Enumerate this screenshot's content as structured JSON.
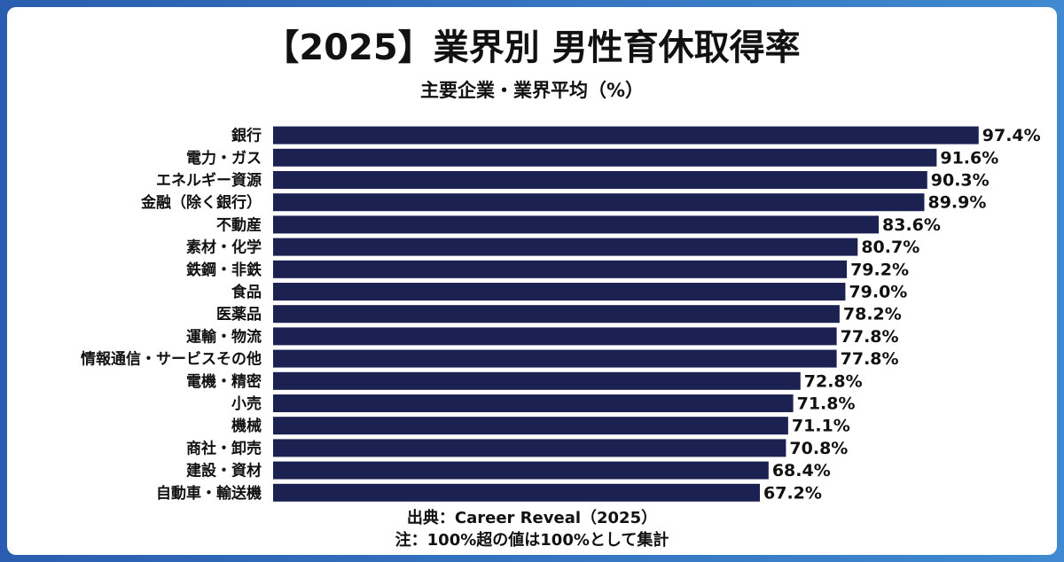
{
  "chart_data": {
    "type": "hbar",
    "title": "【2025】業界別 男性育休取得率",
    "subtitle": "主要企業・業界平均（%）",
    "categories": [
      "銀行",
      "電力・ガス",
      "エネルギー資源",
      "金融（除く銀行）",
      "不動産",
      "素材・化学",
      "鉄鋼・非鉄",
      "食品",
      "医薬品",
      "運輸・物流",
      "情報通信・サービスその他",
      "電機・精密",
      "小売",
      "機械",
      "商社・卸売",
      "建設・資材",
      "自動車・輸送機"
    ],
    "values": [
      97.4,
      91.6,
      90.3,
      89.9,
      83.6,
      80.7,
      79.2,
      79.0,
      78.2,
      77.8,
      77.8,
      72.8,
      71.8,
      71.1,
      70.8,
      68.4,
      67.2
    ],
    "value_labels": [
      "97.4%",
      "91.6%",
      "90.3%",
      "89.9%",
      "83.6%",
      "80.7%",
      "79.2%",
      "79.0%",
      "78.2%",
      "77.8%",
      "77.8%",
      "72.8%",
      "71.8%",
      "71.1%",
      "70.8%",
      "68.4%",
      "67.2%"
    ],
    "color": "#1b2150",
    "xlim": [
      0,
      100
    ],
    "source": "出典：Career Reveal（2025）",
    "note": "注：100%超の値は100%として集計"
  }
}
